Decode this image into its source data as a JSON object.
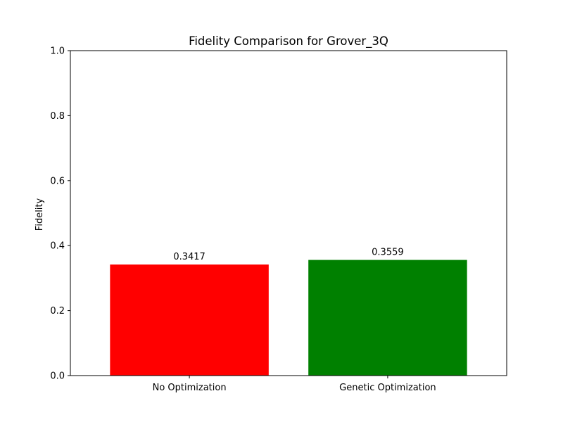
{
  "chart_data": {
    "type": "bar",
    "title": "Fidelity Comparison for Grover_3Q",
    "xlabel": "",
    "ylabel": "Fidelity",
    "categories": [
      "No Optimization",
      "Genetic Optimization"
    ],
    "values": [
      0.3417,
      0.3559
    ],
    "value_labels": [
      "0.3417",
      "0.3559"
    ],
    "colors": [
      "#ff0000",
      "#008000"
    ],
    "ylim": [
      0,
      1.0
    ],
    "yticks": [
      0.0,
      0.2,
      0.4,
      0.6,
      0.8,
      1.0
    ],
    "ytick_labels": [
      "0.0",
      "0.2",
      "0.4",
      "0.6",
      "0.8",
      "1.0"
    ],
    "grid": false,
    "legend": "none"
  }
}
